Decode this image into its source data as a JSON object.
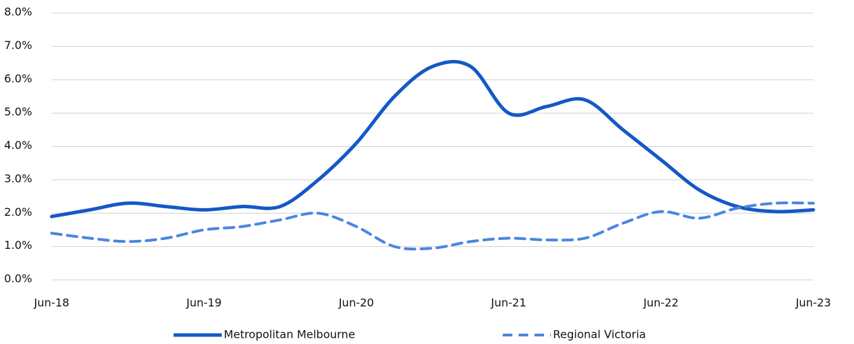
{
  "chart_data": {
    "type": "line",
    "categories": [
      "Jun-18",
      null,
      null,
      null,
      "Jun-19",
      null,
      null,
      null,
      "Jun-20",
      null,
      null,
      null,
      "Jun-21",
      null,
      null,
      null,
      "Jun-22",
      null,
      null,
      null,
      "Jun-23"
    ],
    "series": [
      {
        "name": "Metropolitan Melbourne",
        "color": "#1558c6",
        "dash": false,
        "values": [
          1.9,
          2.1,
          2.3,
          2.2,
          2.1,
          2.2,
          2.2,
          3.0,
          4.1,
          5.5,
          6.4,
          6.4,
          5.0,
          5.2,
          5.4,
          4.5,
          3.6,
          2.7,
          2.2,
          2.05,
          2.1
        ]
      },
      {
        "name": "Regional Victoria",
        "color": "#4a86e0",
        "dash": true,
        "values": [
          1.4,
          1.25,
          1.15,
          1.25,
          1.5,
          1.6,
          1.8,
          2.0,
          1.6,
          1.0,
          0.95,
          1.15,
          1.25,
          1.2,
          1.25,
          1.7,
          2.05,
          1.85,
          2.15,
          2.3,
          2.3
        ]
      }
    ],
    "ylim": [
      0,
      8
    ],
    "yticks": [
      {
        "value": 0,
        "label": "0.0%"
      },
      {
        "value": 1,
        "label": "1.0%"
      },
      {
        "value": 2,
        "label": "2.0%"
      },
      {
        "value": 3,
        "label": "3.0%"
      },
      {
        "value": 4,
        "label": "4.0%"
      },
      {
        "value": 5,
        "label": "5.0%"
      },
      {
        "value": 6,
        "label": "6.0%"
      },
      {
        "value": 7,
        "label": "7.0%"
      },
      {
        "value": 8,
        "label": "8.0%"
      }
    ],
    "grid": true,
    "legend": "bottom"
  }
}
